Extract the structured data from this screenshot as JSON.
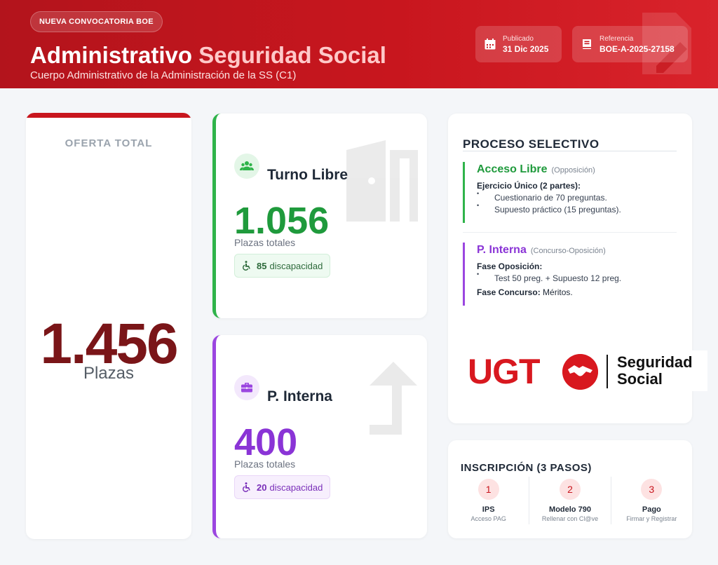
{
  "header": {
    "badge": "NUEVA CONVOCATORIA BOE",
    "title_main": "Administrativo",
    "title_accent": "Seguridad Social",
    "subtitle": "Cuerpo Administrativo de la Administración de la SS (C1)",
    "published_label": "Publicado",
    "published_value": "31 Dic 2025",
    "reference_label": "Referencia",
    "reference_value": "BOE-A-2025-27158"
  },
  "total": {
    "label": "OFERTA TOTAL",
    "value": "1.456",
    "unit": "Plazas"
  },
  "turno_libre": {
    "title": "Turno Libre",
    "value": "1.056",
    "value_label": "Plazas totales",
    "disability_count": "85",
    "disability_label": "discapacidad"
  },
  "p_interna": {
    "title": "P. Interna",
    "value": "400",
    "value_label": "Plazas totales",
    "disability_count": "20",
    "disability_label": "discapacidad"
  },
  "proceso": {
    "title": "PROCESO SELECTIVO",
    "acceso_libre": {
      "title": "Acceso Libre",
      "subtitle": "(Opposición)",
      "heading": "Ejercicio Único (2 partes):",
      "bullets": [
        "Cuestionario de 70 preguntas.",
        "Supuesto práctico (15 preguntas)."
      ]
    },
    "p_interna": {
      "title": "P. Interna",
      "subtitle": "(Concurso-Oposición)",
      "fase_oposicion": "Fase Oposición:",
      "bullet": "Test 50 preg. + Supuesto 12 preg.",
      "fase_concurso_label": "Fase Concurso:",
      "fase_concurso_value": "Méritos."
    }
  },
  "logo": {
    "brand": "UGT",
    "line1": "Seguridad",
    "line2": "Social"
  },
  "inscripcion": {
    "title": "INSCRIPCIÓN (3 PASOS)",
    "steps": [
      {
        "number": "1",
        "name": "IPS",
        "desc": "Acceso PAG"
      },
      {
        "number": "2",
        "name": "Modelo 790",
        "desc": "Rellenar con Cl@ve"
      },
      {
        "number": "3",
        "name": "Pago",
        "desc": "Firmar y Registrar"
      }
    ]
  },
  "colors": {
    "brand_red": "#c8161e",
    "green": "#2fb34a",
    "purple": "#9b46e0",
    "total_number": "#7a1518"
  }
}
